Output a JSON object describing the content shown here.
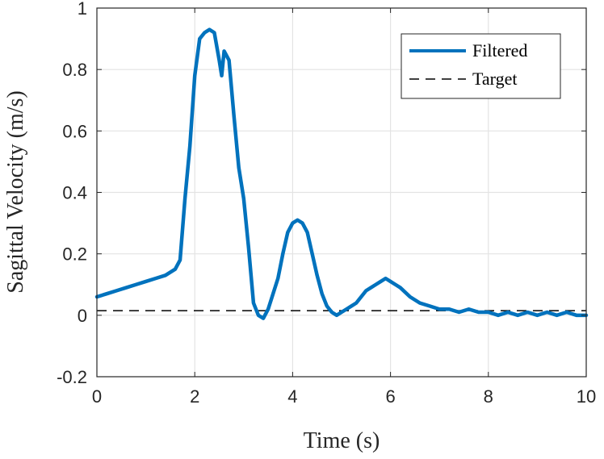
{
  "chart_data": {
    "type": "line",
    "xlabel": "Time (s)",
    "ylabel": "Sagittal Velocity (m/s)",
    "xlim": [
      0,
      10
    ],
    "ylim": [
      -0.2,
      1
    ],
    "xticks": [
      0,
      2,
      4,
      6,
      8,
      10
    ],
    "xtick_labels": [
      "0",
      "2",
      "4",
      "6",
      "8",
      "10"
    ],
    "yticks": [
      -0.2,
      0,
      0.2,
      0.4,
      0.6,
      0.8,
      1
    ],
    "ytick_labels": [
      "-0.2",
      "0",
      "0.2",
      "0.4",
      "0.6",
      "0.8",
      "1"
    ],
    "grid": true,
    "legend_position": "top-right",
    "series": [
      {
        "name": "Filtered",
        "color": "#0072BD",
        "style": "solid",
        "x": [
          0,
          0.2,
          0.4,
          0.6,
          0.8,
          1.0,
          1.2,
          1.4,
          1.6,
          1.7,
          1.8,
          1.9,
          2.0,
          2.1,
          2.2,
          2.3,
          2.4,
          2.5,
          2.55,
          2.6,
          2.7,
          2.8,
          2.9,
          3.0,
          3.1,
          3.2,
          3.3,
          3.4,
          3.5,
          3.6,
          3.7,
          3.8,
          3.9,
          4.0,
          4.1,
          4.2,
          4.3,
          4.4,
          4.5,
          4.6,
          4.7,
          4.8,
          4.9,
          5.0,
          5.1,
          5.2,
          5.3,
          5.4,
          5.5,
          5.6,
          5.7,
          5.8,
          5.9,
          6.0,
          6.1,
          6.2,
          6.4,
          6.6,
          6.8,
          7.0,
          7.2,
          7.4,
          7.6,
          7.8,
          8.0,
          8.2,
          8.4,
          8.6,
          8.8,
          9.0,
          9.2,
          9.4,
          9.6,
          9.8,
          10.0
        ],
        "y": [
          0.06,
          0.07,
          0.08,
          0.09,
          0.1,
          0.11,
          0.12,
          0.13,
          0.15,
          0.18,
          0.38,
          0.55,
          0.78,
          0.9,
          0.92,
          0.93,
          0.92,
          0.83,
          0.78,
          0.86,
          0.83,
          0.65,
          0.48,
          0.38,
          0.22,
          0.04,
          0.0,
          -0.01,
          0.02,
          0.07,
          0.12,
          0.2,
          0.27,
          0.3,
          0.31,
          0.3,
          0.27,
          0.2,
          0.13,
          0.07,
          0.03,
          0.01,
          0.0,
          0.01,
          0.02,
          0.03,
          0.04,
          0.06,
          0.08,
          0.09,
          0.1,
          0.11,
          0.12,
          0.11,
          0.1,
          0.09,
          0.06,
          0.04,
          0.03,
          0.02,
          0.02,
          0.01,
          0.02,
          0.01,
          0.01,
          0.0,
          0.01,
          0.0,
          0.01,
          0.0,
          0.01,
          0.0,
          0.01,
          0.0,
          0.0
        ]
      },
      {
        "name": "Target",
        "color": "#000000",
        "style": "dashed",
        "x": [
          0,
          10
        ],
        "y": [
          0.015,
          0.015
        ]
      }
    ]
  }
}
